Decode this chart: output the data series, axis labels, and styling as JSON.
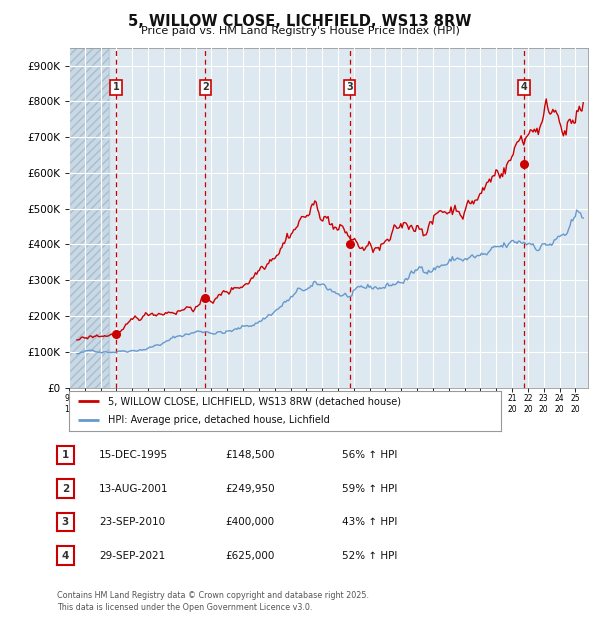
{
  "title": "5, WILLOW CLOSE, LICHFIELD, WS13 8RW",
  "subtitle": "Price paid vs. HM Land Registry's House Price Index (HPI)",
  "transactions": [
    {
      "label": "1",
      "date": "15-DEC-1995",
      "price": 148500,
      "pct": "56%",
      "year_float": 1995.96
    },
    {
      "label": "2",
      "date": "13-AUG-2001",
      "price": 249950,
      "pct": "59%",
      "year_float": 2001.62
    },
    {
      "label": "3",
      "date": "23-SEP-2010",
      "price": 400000,
      "pct": "43%",
      "year_float": 2010.73
    },
    {
      "label": "4",
      "date": "29-SEP-2021",
      "price": 625000,
      "pct": "52%",
      "year_float": 2021.75
    }
  ],
  "legend_labels": [
    "5, WILLOW CLOSE, LICHFIELD, WS13 8RW (detached house)",
    "HPI: Average price, detached house, Lichfield"
  ],
  "footer": "Contains HM Land Registry data © Crown copyright and database right 2025.\nThis data is licensed under the Open Government Licence v3.0.",
  "red_color": "#cc0000",
  "blue_color": "#6699cc",
  "bg_color": "#dde8f0",
  "hatch_color": "#b0c4d8",
  "grid_color": "#ffffff",
  "ylim": [
    0,
    950000
  ],
  "yticks": [
    0,
    100000,
    200000,
    300000,
    400000,
    500000,
    600000,
    700000,
    800000,
    900000
  ],
  "ylabels": [
    "£0",
    "£100K",
    "£200K",
    "£300K",
    "£400K",
    "£500K",
    "£600K",
    "£700K",
    "£800K",
    "£900K"
  ],
  "xlim_start": 1993.0,
  "xlim_end": 2025.8,
  "hatch_end": 1995.5,
  "xtick_start": 1993,
  "xtick_end": 2025
}
